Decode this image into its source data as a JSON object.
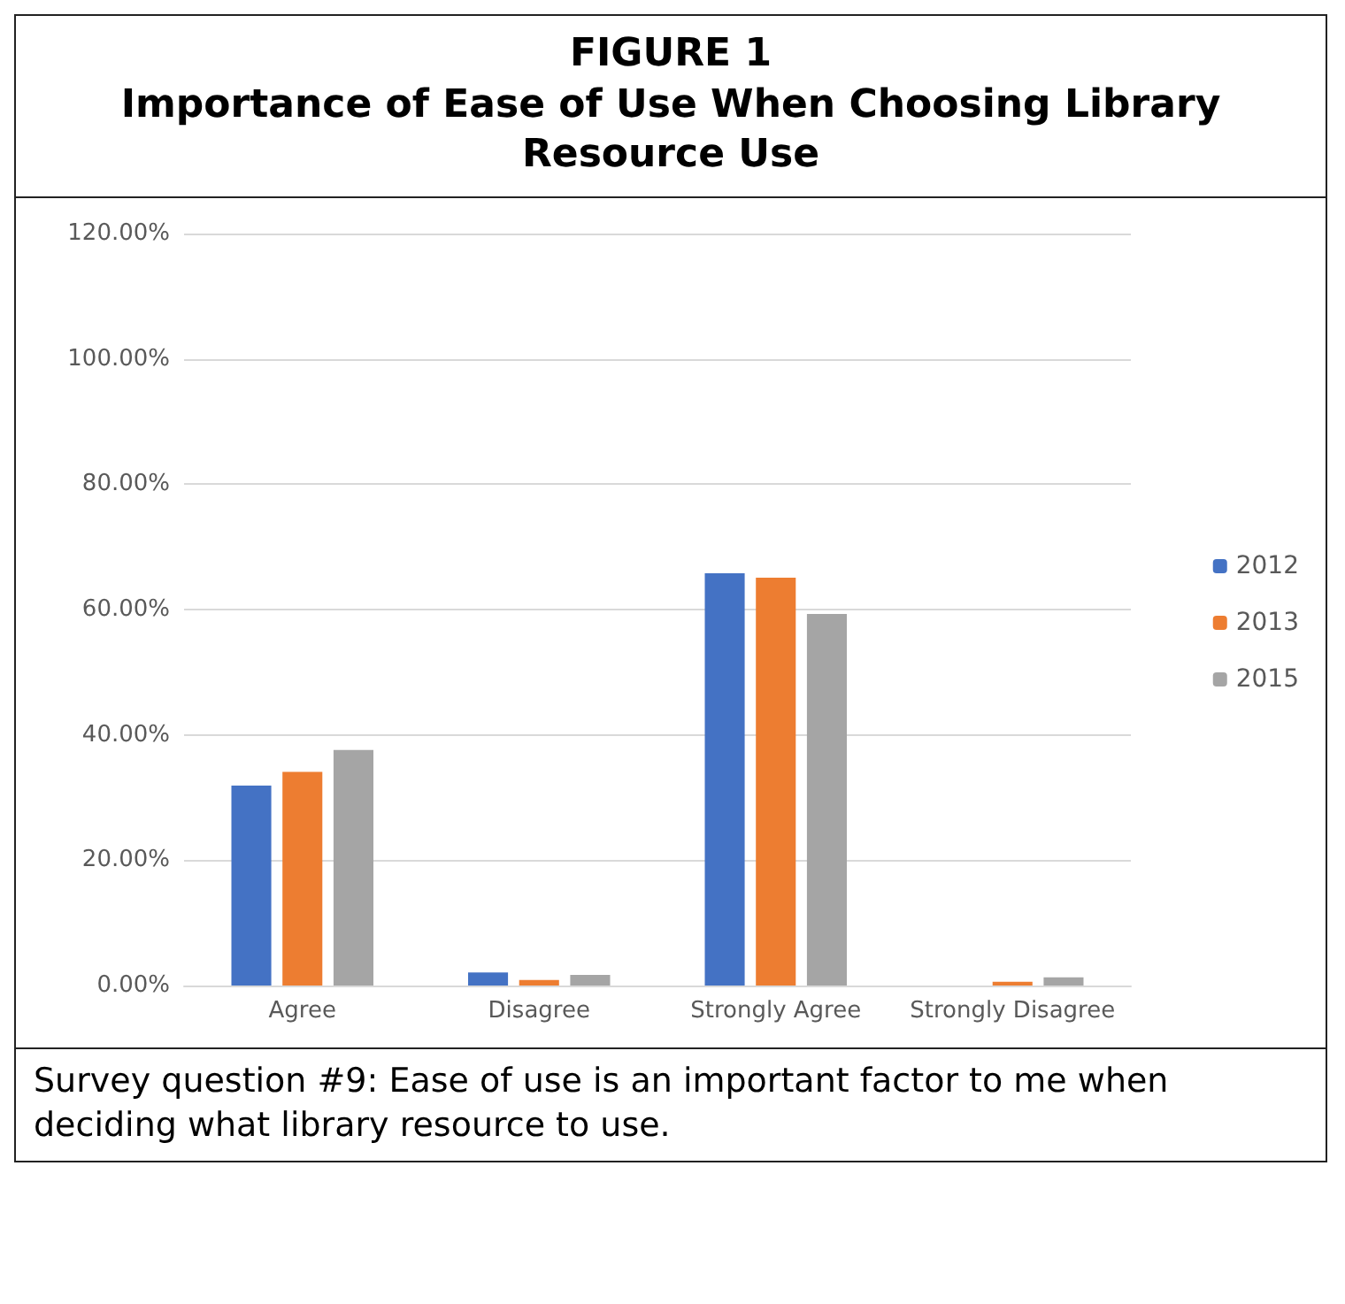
{
  "chart_data": {
    "type": "bar",
    "title": "FIGURE 1",
    "subtitle": "Importance of Ease of Use When Choosing Library Resource Use",
    "categories": [
      "Agree",
      "Disagree",
      "Strongly Agree",
      "Strongly Disagree"
    ],
    "series": [
      {
        "name": "2012",
        "color": "#4472c4",
        "values": [
          31.9,
          2.1,
          65.8,
          0
        ]
      },
      {
        "name": "2013",
        "color": "#ed7d31",
        "values": [
          34.1,
          0.9,
          65.1,
          0.6
        ]
      },
      {
        "name": "2015",
        "color": "#a5a5a5",
        "values": [
          37.6,
          1.7,
          59.3,
          1.3
        ]
      }
    ],
    "ylim": [
      0,
      120
    ],
    "yticks": [
      {
        "value": 0,
        "label": "0.00%"
      },
      {
        "value": 20,
        "label": "20.00%"
      },
      {
        "value": 40,
        "label": "40.00%"
      },
      {
        "value": 60,
        "label": "60.00%"
      },
      {
        "value": 80,
        "label": "80.00%"
      },
      {
        "value": 100,
        "label": "100.00%"
      },
      {
        "value": 120,
        "label": "120.00%"
      }
    ],
    "grid": "y",
    "legend": "right",
    "annotations": [
      "Survey question #9: Ease of use is an important factor to me when deciding what library resource to use."
    ]
  }
}
